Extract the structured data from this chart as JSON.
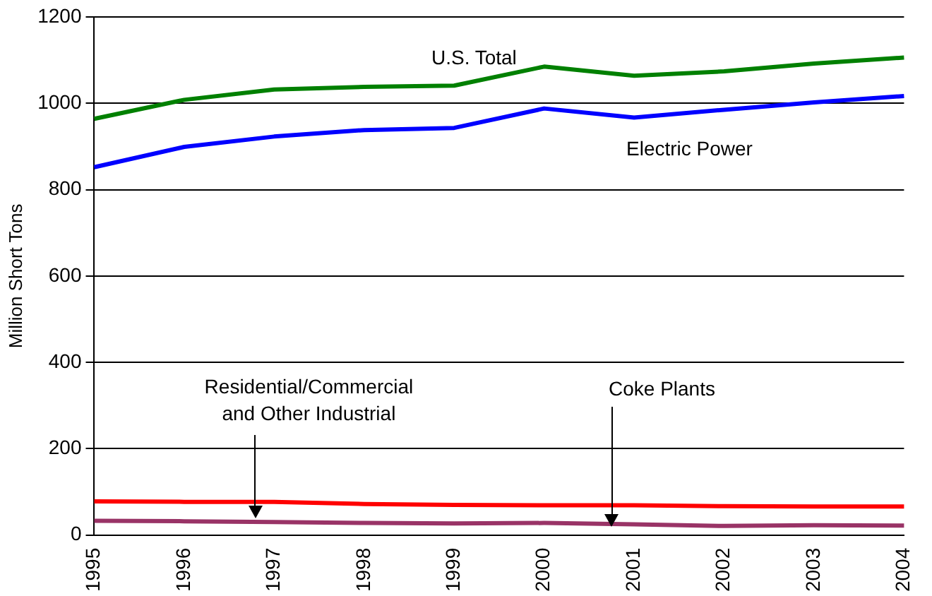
{
  "chart_data": {
    "type": "line",
    "ylabel": "Million Short Tons",
    "categories": [
      "1995",
      "1996",
      "1997",
      "1998",
      "1999",
      "2000",
      "2001",
      "2002",
      "2003",
      "2004"
    ],
    "series": [
      {
        "color": "#008000",
        "values": [
          964,
          1008,
          1032,
          1038,
          1041,
          1085,
          1064,
          1074,
          1092,
          1106
        ]
      },
      {
        "color": "#0000ff",
        "values": [
          852,
          899,
          923,
          938,
          943,
          988,
          967,
          985,
          1002,
          1017
        ]
      },
      {
        "color": "#ff0000",
        "values": [
          78,
          77,
          77,
          72,
          70,
          69,
          69,
          67,
          66,
          66
        ]
      },
      {
        "color": "#993366",
        "values": [
          33,
          32,
          30,
          28,
          27,
          28,
          25,
          21,
          23,
          22
        ]
      }
    ],
    "ylim": [
      0,
      1200
    ],
    "yticks": [
      0,
      200,
      400,
      600,
      800,
      1000,
      1200
    ],
    "grid": "y",
    "legend": false,
    "marker": "none",
    "line_style": "solid",
    "annotations": [
      "U.S. Total",
      "Electric Power",
      "Residential/Commercial\nand Other Industrial",
      "Coke Plants"
    ]
  }
}
